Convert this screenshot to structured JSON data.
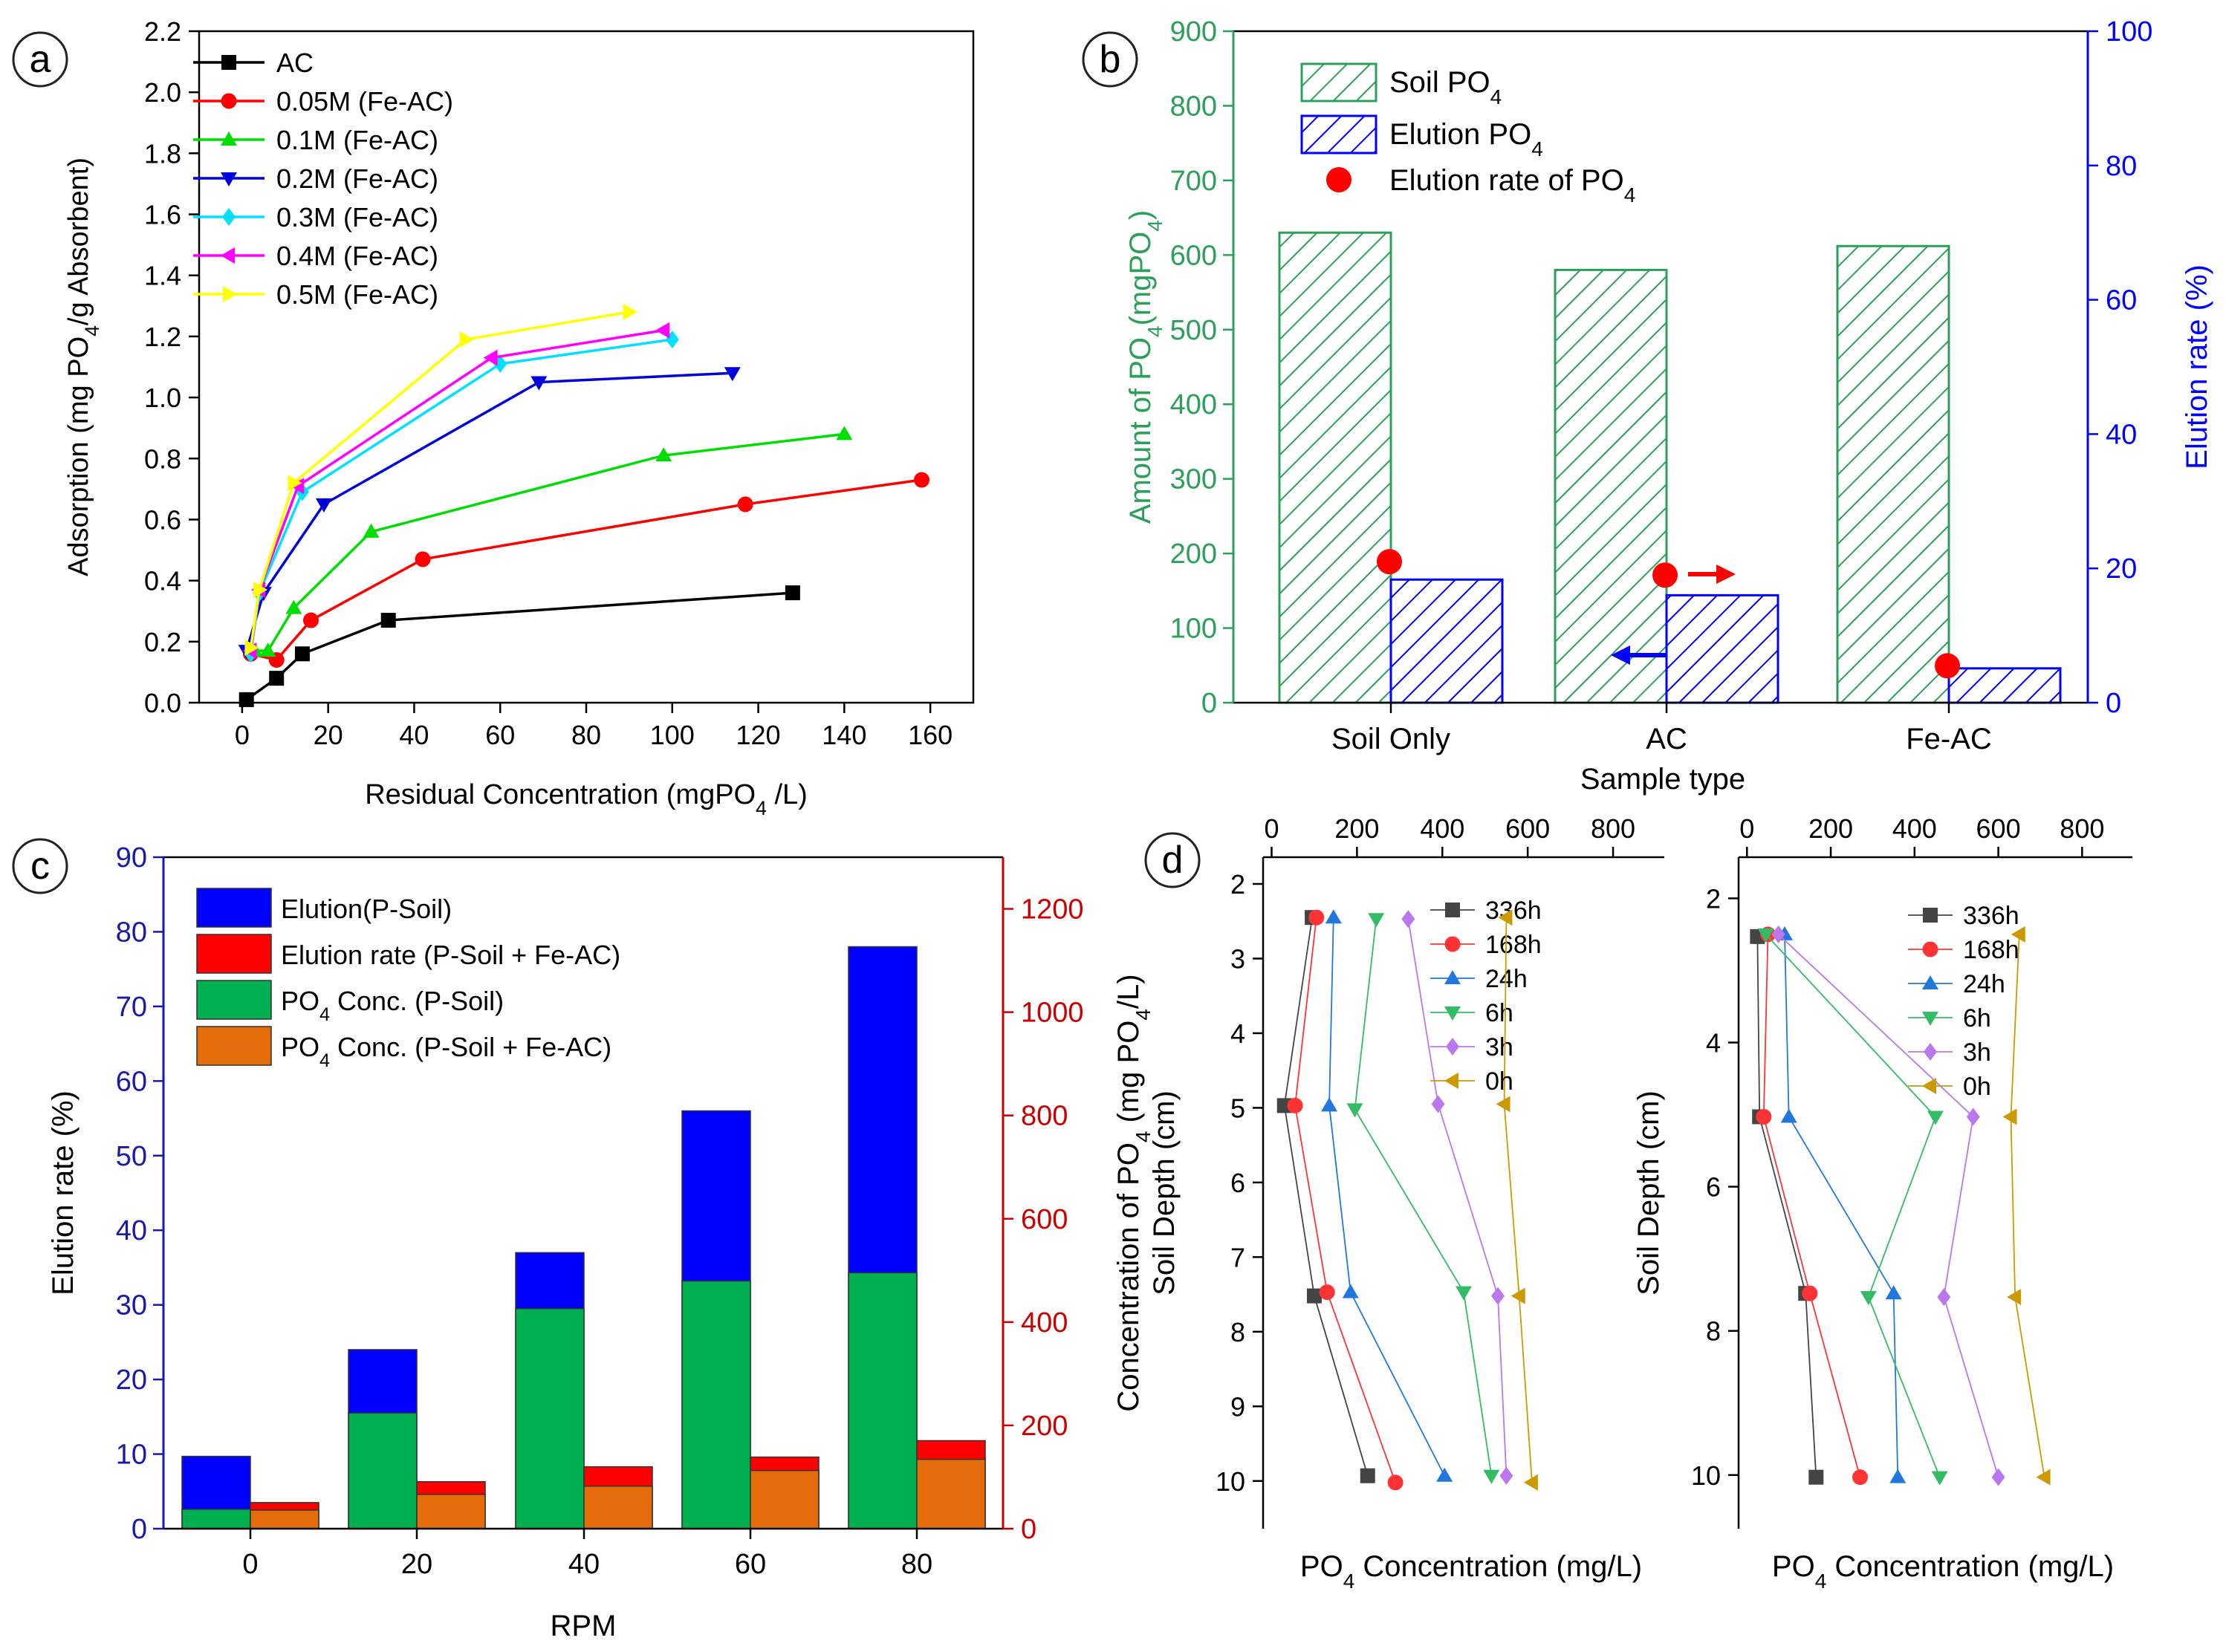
{
  "chart_data": [
    {
      "panel": "a",
      "type": "line",
      "xlabel": "Residual Concentration (mgPO₄ /L)",
      "ylabel": "Adsorption (mg PO₄/g Absorbent)",
      "xlim": [
        -10,
        170
      ],
      "ylim": [
        0,
        2.2
      ],
      "xticks": [
        0,
        20,
        40,
        60,
        80,
        100,
        120,
        140,
        160
      ],
      "yticks": [
        0.0,
        0.2,
        0.4,
        0.6,
        0.8,
        1.0,
        1.2,
        1.4,
        1.6,
        1.8,
        2.0,
        2.2
      ],
      "legend_position": "top-left",
      "series": [
        {
          "name": "AC",
          "color": "#000000",
          "marker": "square",
          "x": [
            1,
            8,
            14,
            34,
            128
          ],
          "y": [
            0.01,
            0.08,
            0.16,
            0.27,
            0.36
          ]
        },
        {
          "name": "0.05M (Fe-AC)",
          "color": "#ff0000",
          "marker": "circle",
          "x": [
            2,
            8,
            16,
            42,
            117,
            158
          ],
          "y": [
            0.16,
            0.14,
            0.27,
            0.47,
            0.65,
            0.73
          ]
        },
        {
          "name": "0.1M (Fe-AC)",
          "color": "#00dd00",
          "marker": "triangle-up",
          "x": [
            3,
            6,
            12,
            30,
            98,
            140
          ],
          "y": [
            0.17,
            0.17,
            0.31,
            0.56,
            0.81,
            0.88
          ]
        },
        {
          "name": "0.2M (Fe-AC)",
          "color": "#0000dd",
          "marker": "triangle-down",
          "x": [
            1,
            5,
            19,
            69,
            114
          ],
          "y": [
            0.17,
            0.36,
            0.65,
            1.05,
            1.08
          ]
        },
        {
          "name": "0.3M (Fe-AC)",
          "color": "#00e0ff",
          "marker": "diamond",
          "x": [
            2,
            4,
            14,
            60,
            100
          ],
          "y": [
            0.16,
            0.36,
            0.69,
            1.11,
            1.19
          ]
        },
        {
          "name": "0.4M (Fe-AC)",
          "color": "#ff00ff",
          "marker": "triangle-left",
          "x": [
            2,
            4,
            13,
            58,
            98
          ],
          "y": [
            0.17,
            0.37,
            0.71,
            1.13,
            1.22
          ]
        },
        {
          "name": "0.5M (Fe-AC)",
          "color": "#ffff00",
          "marker": "triangle-right",
          "x": [
            2,
            4,
            12,
            52,
            90
          ],
          "y": [
            0.18,
            0.37,
            0.72,
            1.19,
            1.28
          ]
        }
      ]
    },
    {
      "panel": "b",
      "type": "bar",
      "xlabel": "Sample type",
      "ylabel_left": "Amount of PO₄(mgPO₄)",
      "ylabel_right": "Elution rate (%)",
      "categories": [
        "Soil Only",
        "AC",
        "Fe-AC"
      ],
      "ylim_left": [
        0,
        900
      ],
      "ylim_right": [
        0,
        100
      ],
      "yticks_left": [
        0,
        100,
        200,
        300,
        400,
        500,
        600,
        700,
        800,
        900
      ],
      "yticks_right": [
        0,
        20,
        40,
        60,
        80,
        100
      ],
      "left_color": "#2ca05a",
      "right_color": "#0000ff",
      "series": [
        {
          "name": "Soil PO₄",
          "axis": "left",
          "pattern": "hatch-green",
          "values": [
            630,
            580,
            612
          ]
        },
        {
          "name": "Elution PO₄",
          "axis": "left",
          "pattern": "hatch-blue",
          "values": [
            165,
            144,
            46
          ]
        },
        {
          "name": "Elution rate of PO₄",
          "axis": "right",
          "type": "scatter",
          "color": "#ff0000",
          "values": [
            21,
            19,
            5.5
          ]
        }
      ]
    },
    {
      "panel": "c",
      "type": "bar",
      "xlabel": "RPM",
      "ylabel_left": "Elution rate (%)",
      "ylabel_right": "Concentration of PO₄ (mg PO₄/L)",
      "categories": [
        "0",
        "20",
        "40",
        "60",
        "80"
      ],
      "ylim_left": [
        0,
        90
      ],
      "ylim_right": [
        0,
        1300
      ],
      "yticks_left": [
        0,
        10,
        20,
        30,
        40,
        50,
        60,
        70,
        80,
        90
      ],
      "yticks_right": [
        0,
        200,
        400,
        600,
        800,
        1000,
        1200
      ],
      "left_color": "#1a1aaa",
      "right_color": "#cc0000",
      "series": [
        {
          "name": "Elution(P-Soil)",
          "color": "#0000ff",
          "values": [
            9.7,
            24,
            37,
            56,
            78
          ]
        },
        {
          "name": "Elution rate (P-Soil + Fe-AC)",
          "color": "#ff0000",
          "values": [
            3.5,
            6.3,
            8.3,
            9.6,
            11.8
          ]
        },
        {
          "name": "PO₄ Conc. (P-Soil)",
          "color": "#00b050",
          "values": [
            2.6,
            15.5,
            29.5,
            33.2,
            34.3
          ]
        },
        {
          "name": "PO₄ Conc. (P-Soil + Fe-AC)",
          "color": "#e46c0a",
          "values": [
            2.5,
            4.6,
            5.7,
            7.8,
            9.3
          ]
        }
      ]
    },
    {
      "panel": "d",
      "type": "line",
      "ylabel": "Soil Depth (cm)",
      "xlabel": "PO₄ Concentration (mg/L)",
      "xlim": [
        -20,
        920
      ],
      "xticks": [
        0,
        200,
        400,
        600,
        800
      ],
      "legend_position": "top-right",
      "subplots": [
        {
          "ylim": [
            2,
            10.5
          ],
          "yticks": [
            2,
            3,
            4,
            5,
            6,
            7,
            8,
            9,
            10
          ],
          "series": [
            {
              "name": "336h",
              "color": "#444444",
              "marker": "square",
              "x": [
                95,
                30,
                100,
                225
              ],
              "y": [
                2.45,
                4.97,
                7.52,
                9.93
              ]
            },
            {
              "name": "168h",
              "color": "#ff3333",
              "marker": "circle",
              "x": [
                105,
                55,
                130,
                290
              ],
              "y": [
                2.45,
                4.97,
                7.47,
                10.02
              ]
            },
            {
              "name": "24h",
              "color": "#2277dd",
              "marker": "triangle-up",
              "x": [
                145,
                135,
                185,
                405
              ],
              "y": [
                2.45,
                4.97,
                7.47,
                9.93
              ]
            },
            {
              "name": "6h",
              "color": "#33bb66",
              "marker": "triangle-down",
              "x": [
                245,
                195,
                450,
                515
              ],
              "y": [
                2.47,
                5.02,
                7.47,
                9.93
              ]
            },
            {
              "name": "3h",
              "color": "#bb77ee",
              "marker": "diamond",
              "x": [
                320,
                390,
                530,
                550
              ],
              "y": [
                2.47,
                4.95,
                7.52,
                9.93
              ]
            },
            {
              "name": "0h",
              "color": "#cc9900",
              "marker": "triangle-left",
              "x": [
                550,
                545,
                580,
                610
              ],
              "y": [
                2.45,
                4.95,
                7.52,
                10.02
              ]
            }
          ]
        },
        {
          "ylim": [
            1.8,
            10.6
          ],
          "yticks": [
            2,
            4,
            6,
            8,
            10
          ],
          "series": [
            {
              "name": "336h",
              "color": "#444444",
              "marker": "square",
              "x": [
                25,
                30,
                140,
                165
              ],
              "y": [
                2.53,
                5.03,
                7.48,
                10.03
              ]
            },
            {
              "name": "168h",
              "color": "#ff3333",
              "marker": "circle",
              "x": [
                50,
                40,
                150,
                270
              ],
              "y": [
                2.5,
                5.03,
                7.48,
                10.03
              ]
            },
            {
              "name": "24h",
              "color": "#2277dd",
              "marker": "triangle-up",
              "x": [
                90,
                100,
                350,
                360
              ],
              "y": [
                2.5,
                5.03,
                7.48,
                10.03
              ]
            },
            {
              "name": "6h",
              "color": "#33bb66",
              "marker": "triangle-down",
              "x": [
                45,
                450,
                290,
                460
              ],
              "y": [
                2.5,
                5.03,
                7.53,
                10.03
              ]
            },
            {
              "name": "3h",
              "color": "#bb77ee",
              "marker": "diamond",
              "x": [
                75,
                540,
                470,
                600
              ],
              "y": [
                2.5,
                5.03,
                7.53,
                10.03
              ]
            },
            {
              "name": "0h",
              "color": "#cc9900",
              "marker": "triangle-left",
              "x": [
                650,
                630,
                640,
                710
              ],
              "y": [
                2.5,
                5.03,
                7.53,
                10.03
              ]
            }
          ]
        }
      ]
    }
  ],
  "panel_labels": [
    "a",
    "b",
    "c",
    "d"
  ]
}
